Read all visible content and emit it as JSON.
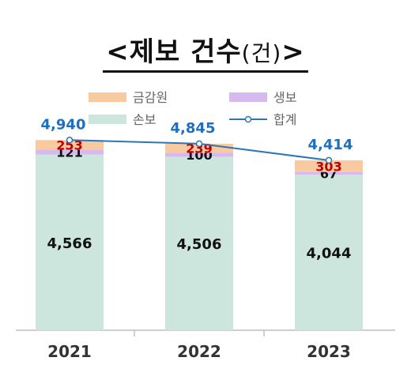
{
  "title": {
    "main": "<제보 건수",
    "unit": "(건)",
    "close": ">"
  },
  "colors": {
    "fss": "#f9c9a0",
    "life": "#d6b9f0",
    "nonlife": "#cce5dd",
    "total_line": "#2e75b6",
    "total_label": "#1f6fc0",
    "fss_label": "#c00000",
    "value_label": "#111111",
    "axis": "#bfbfbf"
  },
  "chart_data": {
    "type": "bar",
    "stacked": true,
    "categories": [
      "2021",
      "2022",
      "2023"
    ],
    "series": [
      {
        "name": "손보",
        "key": "nonlife",
        "values": [
          4566,
          4506,
          4044
        ],
        "labels": [
          "4,566",
          "4,506",
          "4,044"
        ]
      },
      {
        "name": "생보",
        "key": "life",
        "values": [
          121,
          100,
          67
        ],
        "labels": [
          "121",
          "100",
          "67"
        ]
      },
      {
        "name": "금감원",
        "key": "fss",
        "values": [
          253,
          239,
          303
        ],
        "labels": [
          "253",
          "239",
          "303"
        ]
      }
    ],
    "total": {
      "name": "합계",
      "values": [
        4940,
        4845,
        4414
      ],
      "labels": [
        "4,940",
        "4,845",
        "4,414"
      ]
    },
    "legend": [
      "금감원",
      "생보",
      "손보",
      "합계"
    ],
    "ylim": [
      0,
      5500
    ],
    "grid": false,
    "legend_position": "top"
  }
}
